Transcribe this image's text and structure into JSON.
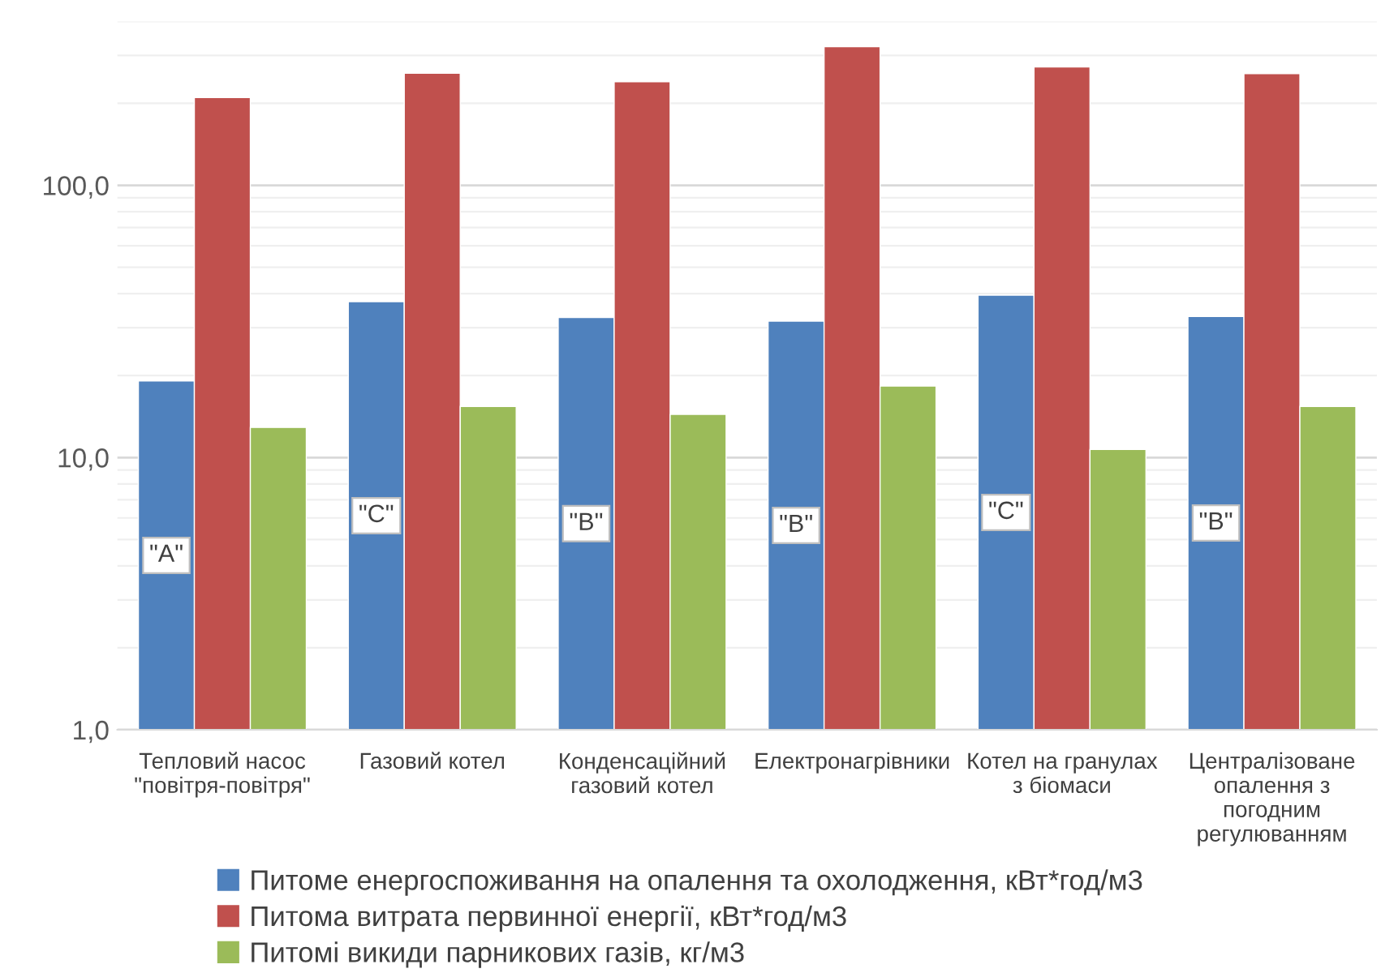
{
  "chart_data": {
    "type": "bar",
    "log": true,
    "grid": "y",
    "legend": "bottom",
    "categories": [
      "Тепловий насос \"повітря-повітря\"",
      "Газовий котел",
      "Конденсаційний газовий котел",
      "Електронагрівники",
      "Котел на гранулах з біомаси",
      "Централізоване опалення з погодним регулюванням"
    ],
    "series": [
      {
        "name": "Питоме енергоспоживання на опалення та охолодження, кВт*год/м3",
        "color": "#4f81bd",
        "values": [
          19.1,
          37.4,
          32.7,
          31.7,
          39.5,
          33.0
        ],
        "value_labels": [
          "\"A\"",
          "\"C\"",
          "\"B\"",
          "\"B\"",
          "\"C\"",
          "\"B\""
        ]
      },
      {
        "name": "Питома витрата первинної енергії, кВт*год/м3",
        "color": "#c0504d",
        "values": [
          210,
          258,
          240,
          323,
          272,
          257
        ]
      },
      {
        "name": "Питомі викиди парникових газів, кг/м3",
        "color": "#9bbb59",
        "values": [
          12.9,
          15.4,
          14.4,
          18.3,
          10.7,
          15.4
        ]
      }
    ],
    "ylim": [
      1,
      400
    ],
    "yticks": [
      {
        "value": 1,
        "label": "1,0"
      },
      {
        "value": 10,
        "label": "10,0"
      },
      {
        "value": 100,
        "label": "100,0"
      }
    ]
  }
}
